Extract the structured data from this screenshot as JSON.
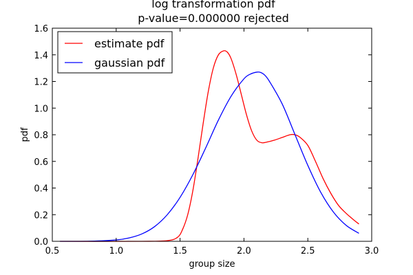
{
  "chart_data": {
    "type": "line",
    "title": "log transformation pdf",
    "subtitle": "p-value=0.000000  rejected",
    "xlabel": "group size",
    "ylabel": "pdf",
    "xlim": [
      0.5,
      3.0
    ],
    "ylim": [
      0.0,
      1.6
    ],
    "xticks": [
      "0.5",
      "1.0",
      "1.5",
      "2.0",
      "2.5",
      "3.0"
    ],
    "xtick_values": [
      0.5,
      1.0,
      1.5,
      2.0,
      2.5,
      3.0
    ],
    "yticks": [
      "0.0",
      "0.2",
      "0.4",
      "0.6",
      "0.8",
      "1.0",
      "1.2",
      "1.4",
      "1.6"
    ],
    "ytick_values": [
      0.0,
      0.2,
      0.4,
      0.6,
      0.8,
      1.0,
      1.2,
      1.4,
      1.6
    ],
    "grid": false,
    "legend_position": "top-left",
    "series": [
      {
        "name": "estimate pdf",
        "color": "#ff0000",
        "x": [
          0.56,
          1.2,
          1.4,
          1.48,
          1.52,
          1.56,
          1.6,
          1.64,
          1.68,
          1.72,
          1.76,
          1.8,
          1.84,
          1.87,
          1.9,
          1.94,
          1.98,
          2.02,
          2.06,
          2.1,
          2.14,
          2.18,
          2.24,
          2.3,
          2.36,
          2.4,
          2.44,
          2.5,
          2.56,
          2.62,
          2.68,
          2.74,
          2.8,
          2.86,
          2.9
        ],
        "y": [
          0.0,
          0.0,
          0.005,
          0.03,
          0.09,
          0.2,
          0.38,
          0.62,
          0.88,
          1.12,
          1.3,
          1.4,
          1.43,
          1.42,
          1.37,
          1.25,
          1.1,
          0.95,
          0.83,
          0.76,
          0.74,
          0.745,
          0.76,
          0.78,
          0.8,
          0.8,
          0.78,
          0.72,
          0.6,
          0.47,
          0.36,
          0.27,
          0.21,
          0.16,
          0.13
        ]
      },
      {
        "name": "gaussian pdf",
        "color": "#0000ff",
        "x": [
          0.56,
          0.8,
          1.0,
          1.1,
          1.2,
          1.3,
          1.4,
          1.5,
          1.6,
          1.7,
          1.8,
          1.9,
          2.0,
          2.05,
          2.1,
          2.13,
          2.16,
          2.2,
          2.3,
          2.4,
          2.5,
          2.6,
          2.7,
          2.8,
          2.9
        ],
        "y": [
          0.0,
          0.001,
          0.01,
          0.025,
          0.055,
          0.11,
          0.2,
          0.33,
          0.5,
          0.7,
          0.91,
          1.09,
          1.22,
          1.255,
          1.27,
          1.268,
          1.25,
          1.2,
          1.03,
          0.8,
          0.57,
          0.37,
          0.22,
          0.12,
          0.06
        ]
      }
    ]
  }
}
